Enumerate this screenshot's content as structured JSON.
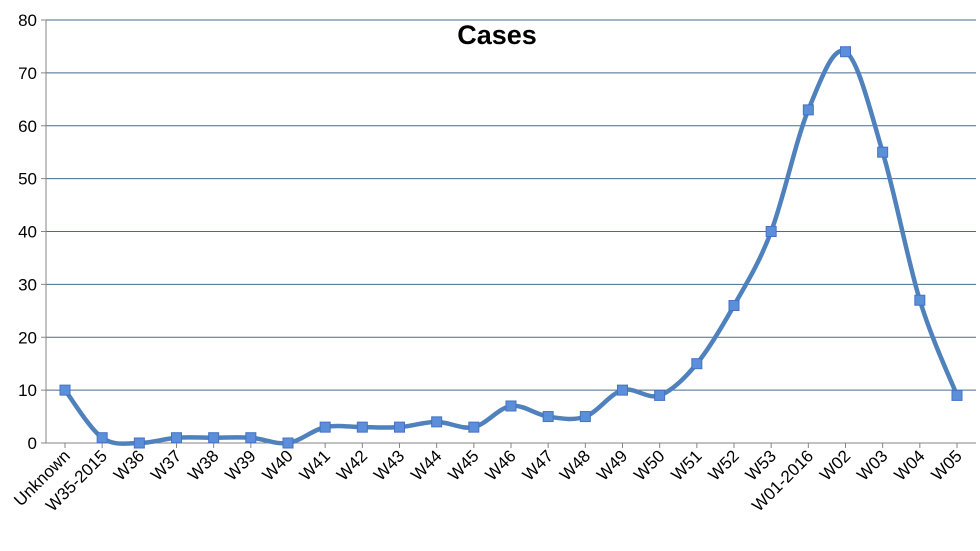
{
  "chart_data": {
    "type": "line",
    "title": "Cases",
    "xlabel": "",
    "ylabel": "",
    "ylim": [
      0,
      80
    ],
    "yticks": [
      "0",
      "10",
      "20",
      "30",
      "40",
      "50",
      "60",
      "70",
      "80"
    ],
    "categories": [
      "Unknown",
      "W35-2015",
      "W36",
      "W37",
      "W38",
      "W39",
      "W40",
      "W41",
      "W42",
      "W43",
      "W44",
      "W45",
      "W46",
      "W47",
      "W48",
      "W49",
      "W50",
      "W51",
      "W52",
      "W53",
      "W01-2016",
      "W02",
      "W03",
      "W04",
      "W05"
    ],
    "series": [
      {
        "values": [
          10,
          1,
          0,
          1,
          1,
          1,
          0,
          3,
          3,
          3,
          4,
          3,
          7,
          5,
          5,
          10,
          9,
          15,
          26,
          40,
          63,
          74,
          55,
          27,
          9
        ]
      }
    ],
    "grid": true,
    "legend": "none",
    "line_color": "#4F81BD",
    "marker_color": "#5B8FD9",
    "marker_edge_color": "#4472C4",
    "grid_color": "#4A6B8A",
    "axis_color": "#868686"
  }
}
